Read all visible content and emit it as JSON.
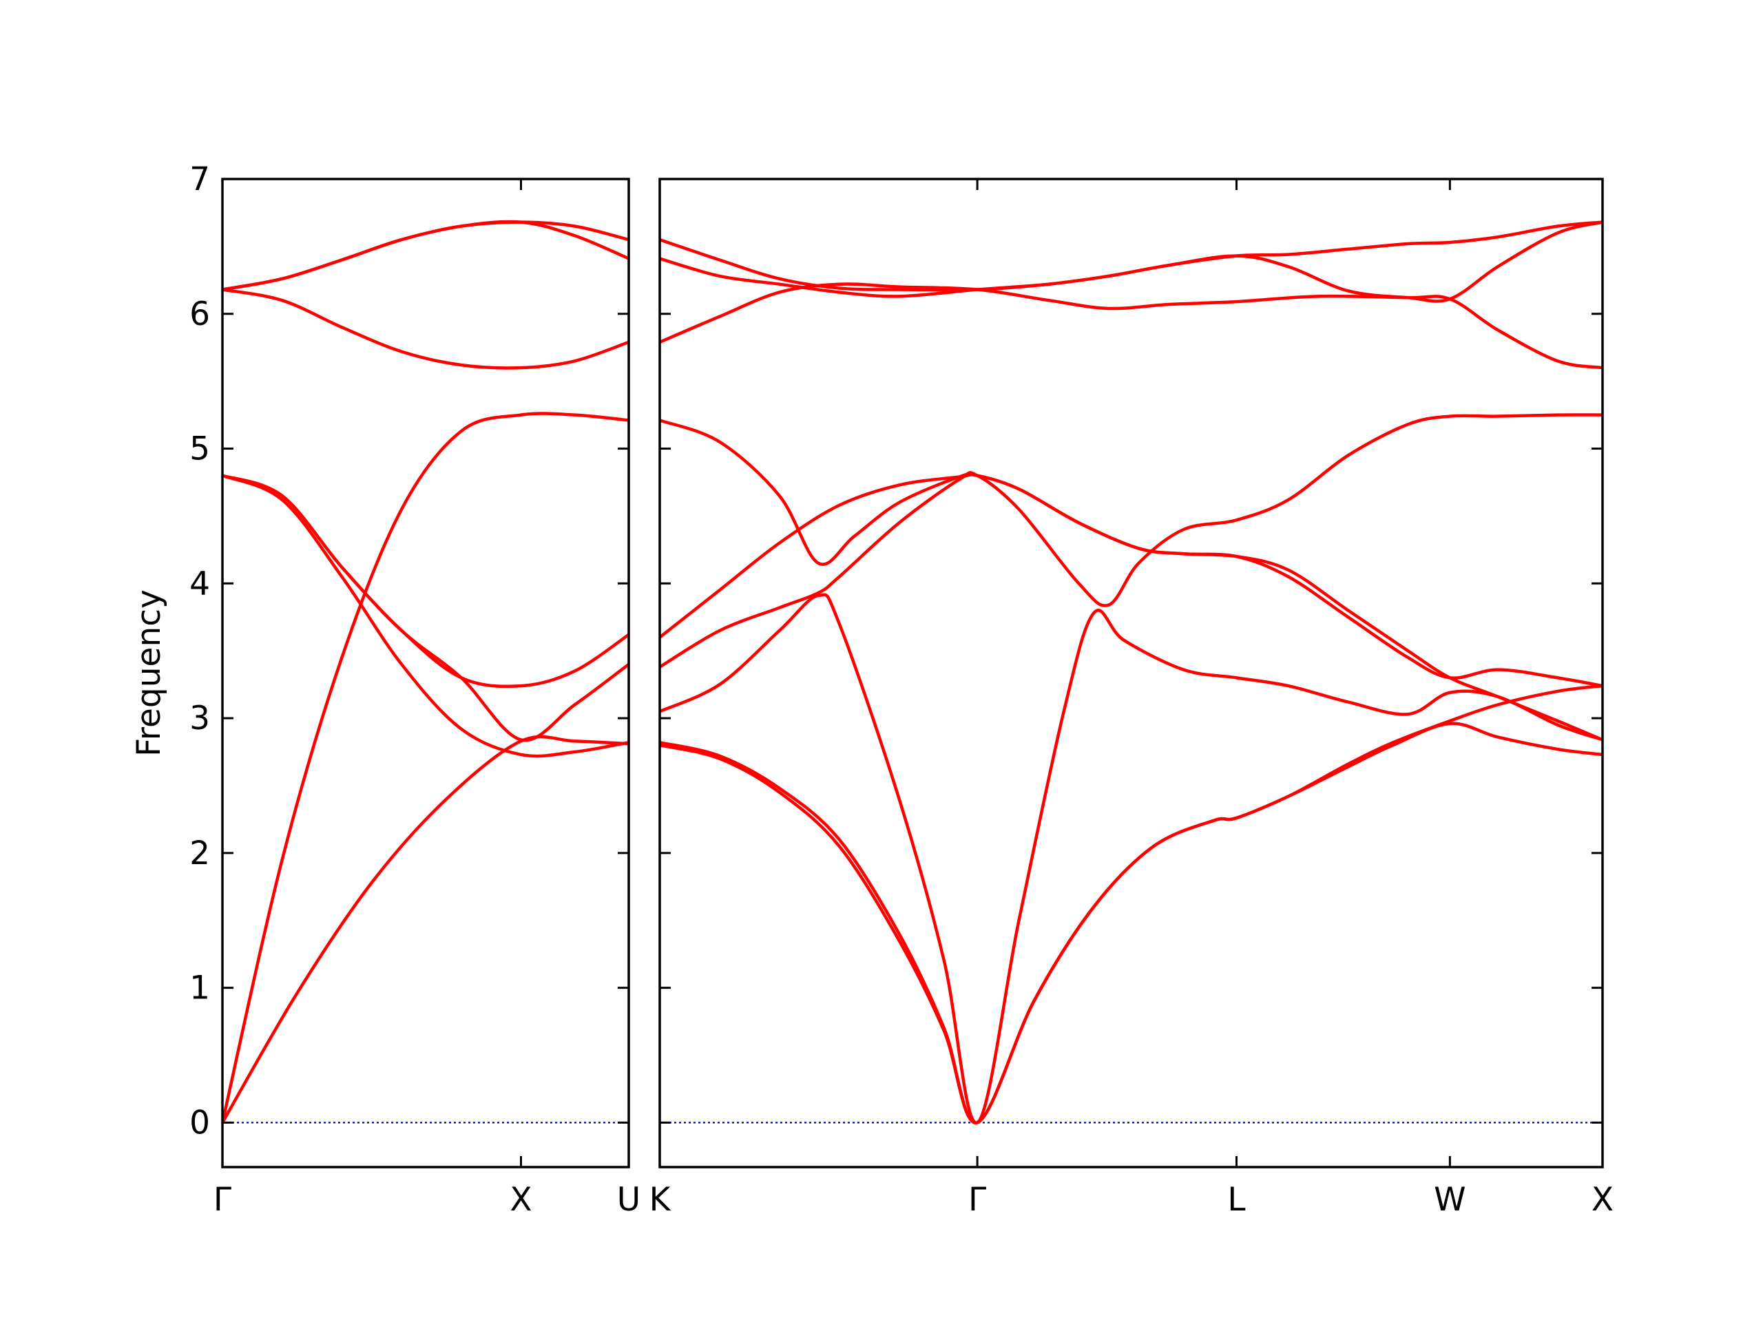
{
  "chart_data": {
    "type": "line",
    "ylabel": "Frequency",
    "ylim": [
      -0.33,
      7.0
    ],
    "yticks": [
      0,
      1,
      2,
      3,
      4,
      5,
      6,
      7
    ],
    "grid": false,
    "colors": {
      "bands": "#ff0000",
      "zero_line": "#0000aa",
      "axes": "#000000"
    },
    "panels": [
      {
        "id": "panel-gamma-x-u",
        "xrange": [
          0,
          1.361
        ],
        "ticks": [
          {
            "x": 0.0,
            "label": "Γ"
          },
          {
            "x": 1.0,
            "label": "X"
          },
          {
            "x": 1.361,
            "label": "U"
          }
        ],
        "series": [
          {
            "x": [
              0,
              0.25,
              0.5,
              0.75,
              1.0,
              1.18,
              1.361
            ],
            "y": [
              0,
              0.96,
              1.78,
              2.4,
              2.83,
              2.83,
              2.81
            ]
          },
          {
            "x": [
              0,
              0.2,
              0.4,
              0.6,
              0.8,
              1.0,
              1.18,
              1.361
            ],
            "y": [
              0,
              1.95,
              3.45,
              4.55,
              5.13,
              5.25,
              5.25,
              5.21
            ]
          },
          {
            "x": [
              0,
              0.2,
              0.4,
              0.6,
              0.8,
              1.0,
              1.18,
              1.361
            ],
            "y": [
              4.8,
              4.62,
              4.05,
              3.4,
              2.92,
              2.73,
              2.75,
              2.82
            ]
          },
          {
            "x": [
              0,
              0.2,
              0.4,
              0.6,
              0.8,
              1.0,
              1.18,
              1.361
            ],
            "y": [
              4.8,
              4.65,
              4.12,
              3.65,
              3.3,
              3.24,
              3.35,
              3.62
            ]
          },
          {
            "x": [
              0,
              0.2,
              0.4,
              0.6,
              0.8,
              1.0,
              1.18,
              1.361
            ],
            "y": [
              4.8,
              4.65,
              4.12,
              3.65,
              3.3,
              2.84,
              3.1,
              3.4
            ]
          },
          {
            "x": [
              0,
              0.2,
              0.4,
              0.6,
              0.8,
              1.0,
              1.18,
              1.361
            ],
            "y": [
              6.18,
              6.1,
              5.9,
              5.72,
              5.62,
              5.6,
              5.65,
              5.79
            ]
          },
          {
            "x": [
              0,
              0.2,
              0.4,
              0.6,
              0.8,
              1.0,
              1.18,
              1.361
            ],
            "y": [
              6.18,
              6.26,
              6.4,
              6.55,
              6.65,
              6.68,
              6.65,
              6.55
            ]
          },
          {
            "x": [
              0,
              0.2,
              0.4,
              0.6,
              0.8,
              1.0,
              1.18,
              1.361
            ],
            "y": [
              6.18,
              6.26,
              6.4,
              6.55,
              6.65,
              6.68,
              6.58,
              6.41
            ]
          }
        ]
      },
      {
        "id": "panel-k-gamma-l-w-x",
        "xrange": [
          0,
          3.15
        ],
        "ticks": [
          {
            "x": 0.0,
            "label": "K"
          },
          {
            "x": 1.061,
            "label": "Γ"
          },
          {
            "x": 1.927,
            "label": "L"
          },
          {
            "x": 2.64,
            "label": "W"
          },
          {
            "x": 3.15,
            "label": "X"
          }
        ],
        "series": [
          {
            "x": [
              0,
              0.2,
              0.4,
              0.6,
              0.8,
              0.95,
              1.061,
              1.25,
              1.45,
              1.65,
              1.85,
              1.927,
              2.1,
              2.3,
              2.45,
              2.64,
              2.8,
              3.0,
              3.15
            ],
            "y": [
              2.82,
              2.72,
              2.48,
              2.1,
              1.4,
              0.7,
              0,
              0.9,
              1.6,
              2.05,
              2.24,
              2.26,
              2.42,
              2.66,
              2.82,
              2.98,
              3.1,
              3.2,
              3.24
            ]
          },
          {
            "x": [
              0,
              0.2,
              0.4,
              0.6,
              0.8,
              0.95,
              1.061,
              1.25,
              1.45,
              1.65,
              1.85,
              1.927,
              2.1,
              2.3,
              2.45,
              2.64,
              2.8,
              3.0,
              3.15
            ],
            "y": [
              2.8,
              2.7,
              2.45,
              2.05,
              1.35,
              0.68,
              0,
              0.9,
              1.6,
              2.05,
              2.24,
              2.26,
              2.42,
              2.64,
              2.8,
              2.96,
              2.86,
              2.77,
              2.73
            ]
          },
          {
            "x": [
              0,
              0.2,
              0.4,
              0.53,
              0.6,
              0.8,
              0.95,
              1.061,
              1.2,
              1.35,
              1.45,
              1.55,
              1.75,
              1.927,
              2.1,
              2.3,
              2.5,
              2.64,
              2.8,
              3.0,
              3.15
            ],
            "y": [
              3.05,
              3.25,
              3.65,
              3.91,
              3.7,
              2.4,
              1.2,
              0,
              1.5,
              3.05,
              3.78,
              3.58,
              3.36,
              3.3,
              3.24,
              3.12,
              3.03,
              3.19,
              3.16,
              2.95,
              2.84
            ]
          },
          {
            "x": [
              0,
              0.2,
              0.4,
              0.53,
              0.6,
              0.8,
              1.0,
              1.061,
              1.2,
              1.4,
              1.5,
              1.6,
              1.75,
              1.927,
              2.1,
              2.3,
              2.5,
              2.64,
              2.8,
              3.0,
              3.15
            ],
            "y": [
              3.38,
              3.65,
              3.82,
              3.93,
              4.05,
              4.45,
              4.77,
              4.8,
              4.55,
              4.0,
              3.84,
              4.15,
              4.4,
              4.47,
              4.62,
              4.95,
              5.18,
              5.24,
              5.24,
              5.25,
              5.25
            ]
          },
          {
            "x": [
              0,
              0.2,
              0.4,
              0.6,
              0.8,
              1.0,
              1.061,
              1.2,
              1.4,
              1.6,
              1.75,
              1.927,
              2.1,
              2.3,
              2.5,
              2.64,
              2.8,
              3.0,
              3.15
            ],
            "y": [
              3.6,
              3.95,
              4.3,
              4.58,
              4.73,
              4.79,
              4.8,
              4.7,
              4.45,
              4.26,
              4.22,
              4.2,
              4.05,
              3.75,
              3.45,
              3.3,
              3.36,
              3.3,
              3.24
            ]
          },
          {
            "x": [
              0,
              0.2,
              0.4,
              0.53,
              0.65,
              0.8,
              1.0,
              1.061,
              1.2,
              1.4,
              1.6,
              1.75,
              1.927,
              2.1,
              2.3,
              2.5,
              2.64,
              2.8,
              3.0,
              3.15
            ],
            "y": [
              5.21,
              5.05,
              4.65,
              4.15,
              4.35,
              4.6,
              4.79,
              4.8,
              4.7,
              4.45,
              4.26,
              4.22,
              4.2,
              4.1,
              3.8,
              3.5,
              3.3,
              3.16,
              2.98,
              2.84
            ]
          },
          {
            "x": [
              0,
              0.2,
              0.4,
              0.6,
              0.8,
              1.061,
              1.3,
              1.5,
              1.7,
              1.927,
              2.2,
              2.5,
              2.64,
              2.8,
              3.0,
              3.15
            ],
            "y": [
              5.79,
              5.98,
              6.16,
              6.22,
              6.2,
              6.18,
              6.1,
              6.04,
              6.07,
              6.09,
              6.13,
              6.12,
              6.11,
              5.88,
              5.65,
              5.6
            ]
          },
          {
            "x": [
              0,
              0.2,
              0.4,
              0.6,
              0.8,
              1.061,
              1.3,
              1.5,
              1.7,
              1.927,
              2.1,
              2.3,
              2.5,
              2.64,
              2.8,
              3.0,
              3.15
            ],
            "y": [
              6.41,
              6.28,
              6.22,
              6.16,
              6.13,
              6.18,
              6.22,
              6.28,
              6.36,
              6.43,
              6.35,
              6.17,
              6.12,
              6.11,
              6.35,
              6.6,
              6.68
            ]
          },
          {
            "x": [
              0,
              0.2,
              0.4,
              0.6,
              0.8,
              1.061,
              1.3,
              1.5,
              1.7,
              1.927,
              2.1,
              2.3,
              2.5,
              2.64,
              2.8,
              3.0,
              3.15
            ],
            "y": [
              6.55,
              6.4,
              6.26,
              6.19,
              6.18,
              6.18,
              6.22,
              6.28,
              6.36,
              6.43,
              6.44,
              6.48,
              6.52,
              6.53,
              6.57,
              6.65,
              6.68
            ]
          }
        ]
      }
    ]
  }
}
